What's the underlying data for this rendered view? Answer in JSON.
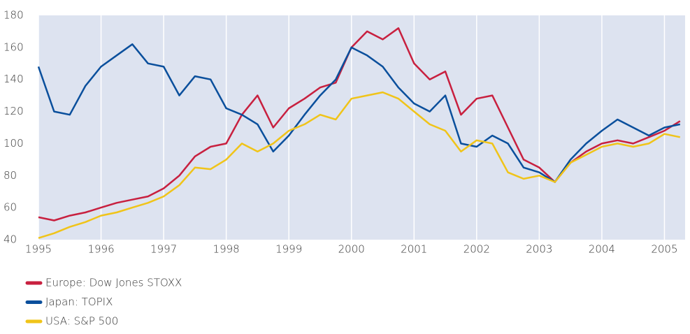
{
  "chart_data": {
    "type": "line",
    "x": [
      1995,
      1995.25,
      1995.5,
      1995.75,
      1996,
      1996.25,
      1996.5,
      1996.75,
      1997,
      1997.25,
      1997.5,
      1997.75,
      1998,
      1998.25,
      1998.5,
      1998.75,
      1999,
      1999.25,
      1999.5,
      1999.75,
      2000,
      2000.25,
      2000.5,
      2000.75,
      2001,
      2001.25,
      2001.5,
      2001.75,
      2002,
      2002.25,
      2002.5,
      2002.75,
      2003,
      2003.25,
      2003.5,
      2003.75,
      2004,
      2004.25,
      2004.5,
      2004.75,
      2005,
      2005.25
    ],
    "series": [
      {
        "name": "Europe: Dow Jones STOXX",
        "color": "#c8203f",
        "values": [
          54,
          52,
          55,
          57,
          60,
          63,
          65,
          67,
          72,
          80,
          92,
          98,
          100,
          118,
          130,
          110,
          122,
          128,
          135,
          138,
          160,
          170,
          165,
          172,
          150,
          140,
          145,
          118,
          128,
          130,
          110,
          90,
          85,
          76,
          88,
          95,
          100,
          102,
          100,
          104,
          108,
          114
        ]
      },
      {
        "name": "Japan: TOPIX",
        "color": "#0a4f9c",
        "values": [
          148,
          120,
          118,
          136,
          148,
          155,
          162,
          150,
          148,
          130,
          142,
          140,
          122,
          118,
          112,
          95,
          105,
          118,
          130,
          140,
          160,
          155,
          148,
          135,
          125,
          120,
          130,
          100,
          98,
          105,
          100,
          85,
          82,
          76,
          90,
          100,
          108,
          115,
          110,
          105,
          110,
          112
        ]
      },
      {
        "name": "USA: S&P 500",
        "color": "#f0c419",
        "values": [
          41,
          44,
          48,
          51,
          55,
          57,
          60,
          63,
          67,
          74,
          85,
          84,
          90,
          100,
          95,
          100,
          108,
          112,
          118,
          115,
          128,
          130,
          132,
          128,
          120,
          112,
          108,
          95,
          102,
          100,
          82,
          78,
          80,
          76,
          88,
          93,
          98,
          100,
          98,
          100,
          106,
          104
        ]
      }
    ],
    "xlim": [
      1995,
      2005.33
    ],
    "xticks": [
      1995,
      1996,
      1997,
      1998,
      1999,
      2000,
      2001,
      2002,
      2003,
      2004,
      2005
    ],
    "ylim": [
      40,
      180
    ],
    "yticks": [
      40,
      60,
      80,
      100,
      120,
      140,
      160,
      180
    ],
    "grid": true
  }
}
